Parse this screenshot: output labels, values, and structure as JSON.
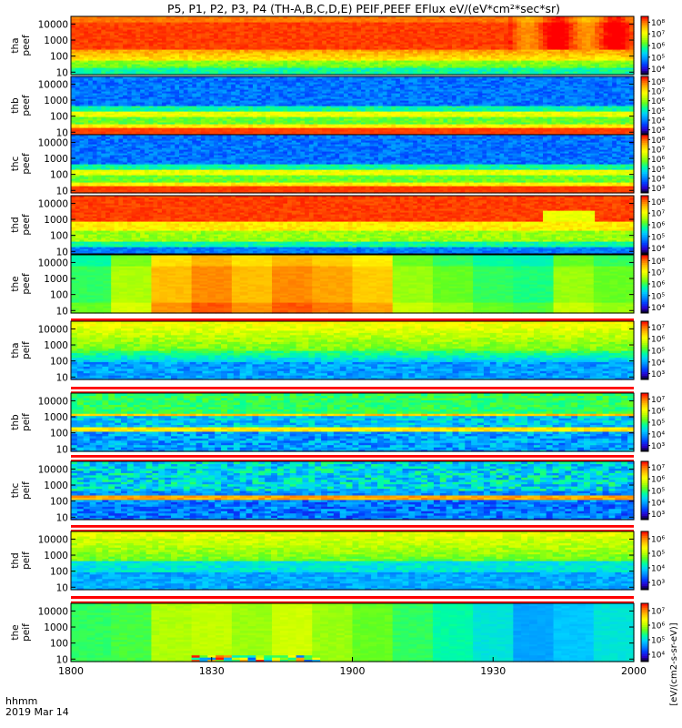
{
  "title": "P5, P1, P2, P3, P4 (TH-A,B,C,D,E) PEIF,PEEF EFlux eV/(eV*cm²*sec*sr)",
  "colorbar_unit_label": "[eV/(cm2-s-sr-eV)]",
  "colors": {
    "background": "#ffffff",
    "frame": "#000000",
    "colormap": [
      "#000000",
      "#2a00d0",
      "#0040ff",
      "#0090ff",
      "#00d0ff",
      "#00ffa0",
      "#60ff20",
      "#c0ff00",
      "#ffff00",
      "#ffc000",
      "#ff7000",
      "#ff0000"
    ]
  },
  "chart_data": {
    "type": "heatmap",
    "x": {
      "range": [
        1800,
        2000
      ],
      "ticks": [
        1800,
        1830,
        1900,
        1930,
        2000
      ],
      "tick_labels": [
        "1800",
        "1830",
        "1900",
        "1930",
        "2000"
      ],
      "label_line1": "hhmm",
      "label_line2": "2019 Mar 14"
    },
    "y_scale": "log",
    "y_range": [
      7,
      30000
    ],
    "y_ticks": [
      10,
      100,
      1000,
      10000
    ],
    "y_tick_labels": [
      "10",
      "100",
      "1000",
      "10000"
    ],
    "panels": [
      {
        "label_top": "tha",
        "label_bottom": "peef",
        "species": "electron",
        "colorbar_ticks": [
          "10⁴",
          "10⁵",
          "10⁶",
          "10⁷",
          "10⁸"
        ],
        "pattern": "a_e"
      },
      {
        "label_top": "thb",
        "label_bottom": "peef",
        "species": "electron",
        "colorbar_ticks": [
          "10³",
          "10⁴",
          "10⁵",
          "10⁶",
          "10⁷",
          "10⁸"
        ],
        "pattern": "b_e"
      },
      {
        "label_top": "thc",
        "label_bottom": "peef",
        "species": "electron",
        "colorbar_ticks": [
          "10³",
          "10⁴",
          "10⁵",
          "10⁶",
          "10⁷",
          "10⁸"
        ],
        "pattern": "c_e"
      },
      {
        "label_top": "thd",
        "label_bottom": "peef",
        "species": "electron",
        "colorbar_ticks": [
          "10⁴",
          "10⁵",
          "10⁶",
          "10⁷",
          "10⁸"
        ],
        "pattern": "d_e"
      },
      {
        "label_top": "the",
        "label_bottom": "peef",
        "species": "electron",
        "colorbar_ticks": [
          "10⁴",
          "10⁵",
          "10⁶",
          "10⁷",
          "10⁸"
        ],
        "pattern": "e_e"
      },
      {
        "label_top": "tha",
        "label_bottom": "peif",
        "species": "ion",
        "colorbar_ticks": [
          "10³",
          "10⁴",
          "10⁵",
          "10⁶",
          "10⁷"
        ],
        "pattern": "a_i"
      },
      {
        "label_top": "thb",
        "label_bottom": "peif",
        "species": "ion",
        "colorbar_ticks": [
          "10³",
          "10⁴",
          "10⁵",
          "10⁶",
          "10⁷"
        ],
        "pattern": "b_i"
      },
      {
        "label_top": "thc",
        "label_bottom": "peif",
        "species": "ion",
        "colorbar_ticks": [
          "10³",
          "10⁴",
          "10⁵",
          "10⁶",
          "10⁷"
        ],
        "pattern": "c_i"
      },
      {
        "label_top": "thd",
        "label_bottom": "peif",
        "species": "ion",
        "colorbar_ticks": [
          "10³",
          "10⁴",
          "10⁵",
          "10⁶"
        ],
        "pattern": "d_i"
      },
      {
        "label_top": "the",
        "label_bottom": "peif",
        "species": "ion",
        "colorbar_ticks": [
          "10⁴",
          "10⁵",
          "10⁶",
          "10⁷"
        ],
        "pattern": "e_i"
      }
    ]
  }
}
